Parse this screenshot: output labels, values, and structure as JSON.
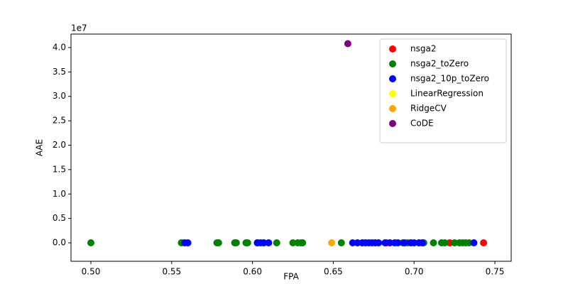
{
  "chart_data": {
    "type": "scatter",
    "x_label": "FPA",
    "y_label": "AAE",
    "y_offset_label": "1e7",
    "xlim": [
      0.4877,
      0.7601
    ],
    "ylim": [
      -0.378,
      4.276
    ],
    "xticks": [
      {
        "value": 0.5,
        "label": "0.50"
      },
      {
        "value": 0.55,
        "label": "0.55"
      },
      {
        "value": 0.6,
        "label": "0.60"
      },
      {
        "value": 0.65,
        "label": "0.65"
      },
      {
        "value": 0.7,
        "label": "0.70"
      },
      {
        "value": 0.75,
        "label": "0.75"
      }
    ],
    "yticks": [
      {
        "value": 0,
        "label": "0.0"
      },
      {
        "value": 0.5,
        "label": "0.5"
      },
      {
        "value": 1,
        "label": "1.0"
      },
      {
        "value": 1.5,
        "label": "1.5"
      },
      {
        "value": 2,
        "label": "2.0"
      },
      {
        "value": 2.5,
        "label": "2.5"
      },
      {
        "value": 3,
        "label": "3.0"
      },
      {
        "value": 3.5,
        "label": "3.5"
      },
      {
        "value": 4,
        "label": "4.0"
      }
    ],
    "legend": "upper right",
    "series": [
      {
        "name": "nsga2",
        "color": "#ff0000",
        "x": [
          0.683,
          0.722,
          0.743
        ],
        "values": [
          0,
          0,
          0
        ]
      },
      {
        "name": "nsga2_toZero",
        "color": "#008000",
        "x": [
          0.5,
          0.556,
          0.578,
          0.579,
          0.589,
          0.59,
          0.596,
          0.597,
          0.603,
          0.615,
          0.625,
          0.628,
          0.63,
          0.631,
          0.655,
          0.693,
          0.696,
          0.706,
          0.712,
          0.717,
          0.719,
          0.725,
          0.728,
          0.73,
          0.732,
          0.734
        ],
        "values": [
          0,
          0,
          0,
          0,
          0,
          0,
          0,
          0,
          0,
          0,
          0,
          0,
          0,
          0,
          0,
          0,
          0,
          0,
          0,
          0,
          0,
          0,
          0,
          0,
          0,
          0
        ]
      },
      {
        "name": "nsga2_10p_toZero",
        "color": "#0000ff",
        "x": [
          0.558,
          0.56,
          0.603,
          0.605,
          0.607,
          0.61,
          0.662,
          0.665,
          0.668,
          0.67,
          0.672,
          0.674,
          0.676,
          0.678,
          0.682,
          0.685,
          0.688,
          0.69,
          0.694,
          0.698,
          0.7,
          0.703,
          0.705,
          0.737
        ],
        "values": [
          0,
          0,
          0,
          0,
          0,
          0,
          0,
          0,
          0,
          0,
          0,
          0,
          0,
          0,
          0,
          0,
          0,
          0,
          0,
          0,
          0,
          0,
          0,
          0
        ]
      },
      {
        "name": "LinearRegression",
        "color": "#ffff00",
        "x": [],
        "values": []
      },
      {
        "name": "RidgeCV",
        "color": "#ffa500",
        "x": [
          0.649
        ],
        "values": [
          0
        ]
      },
      {
        "name": "CoDE",
        "color": "#800080",
        "x": [
          0.659
        ],
        "values": [
          4.08
        ]
      }
    ]
  }
}
